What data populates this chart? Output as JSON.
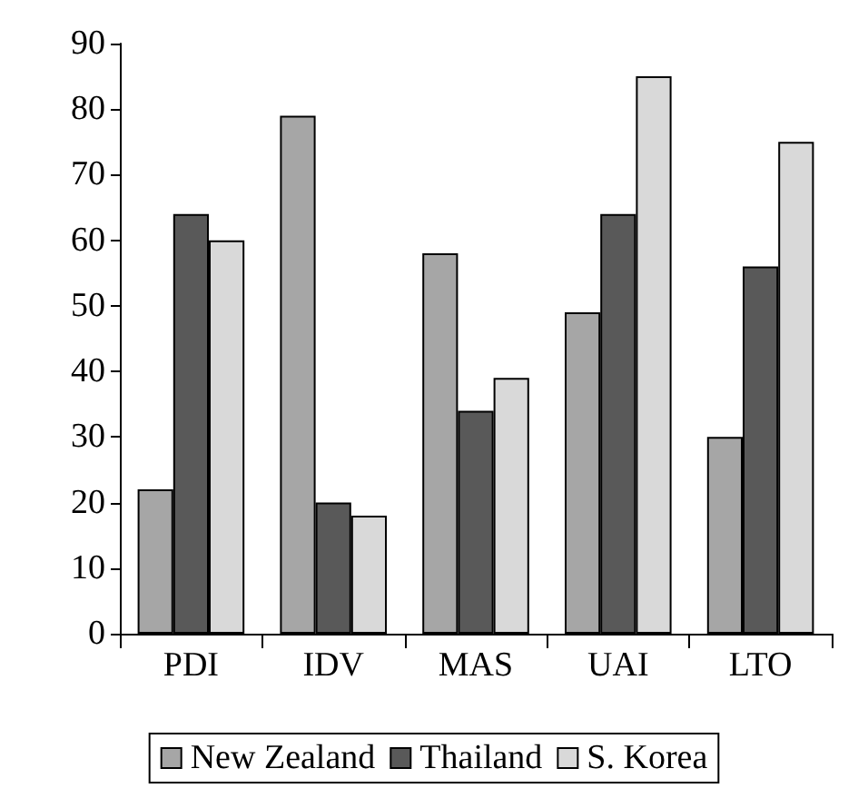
{
  "chart_data": {
    "type": "bar",
    "categories": [
      "PDI",
      "IDV",
      "MAS",
      "UAI",
      "LTO"
    ],
    "series": [
      {
        "name": "New Zealand",
        "color": "#a6a6a6",
        "values": [
          22,
          79,
          58,
          49,
          30
        ]
      },
      {
        "name": "Thailand",
        "color": "#595959",
        "values": [
          64,
          20,
          34,
          64,
          56
        ]
      },
      {
        "name": "S. Korea",
        "color": "#d9d9d9",
        "values": [
          60,
          18,
          39,
          85,
          75
        ]
      }
    ],
    "ylim": [
      0,
      90
    ],
    "yticks": [
      0,
      10,
      20,
      30,
      40,
      50,
      60,
      70,
      80,
      90
    ],
    "grid": false,
    "legend": "bottom"
  }
}
